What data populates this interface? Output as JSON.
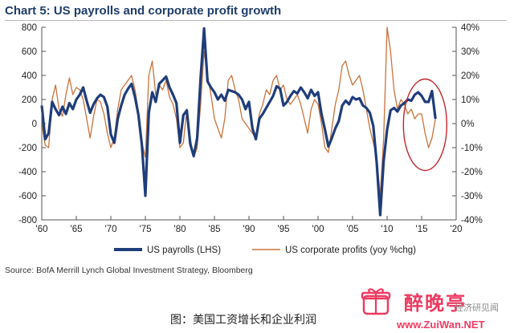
{
  "chart_data": {
    "type": "line",
    "title": "Chart 5: US payrolls and corporate profit growth",
    "x_ticks": [
      "'60",
      "'65",
      "'70",
      "'75",
      "'80",
      "'85",
      "'90",
      "'95",
      "'00",
      "'05",
      "'10",
      "'15",
      "'20"
    ],
    "x_range": [
      1960,
      2020
    ],
    "y_left": {
      "ticks": [
        "800",
        "600",
        "400",
        "200",
        "0",
        "-200",
        "-400",
        "-600",
        "-800"
      ],
      "range": [
        -800,
        800
      ]
    },
    "y_right": {
      "ticks": [
        "40%",
        "30%",
        "20%",
        "10%",
        "0%",
        "-10%",
        "-20%",
        "-30%",
        "-40%"
      ],
      "range": [
        -40,
        40
      ]
    },
    "grid": false,
    "legend_position": "bottom",
    "series": [
      {
        "name": "US payrolls (LHS)",
        "axis": "left",
        "color": "#1f3d7a",
        "x": [
          1960,
          1960.5,
          1961,
          1961.5,
          1962,
          1962.5,
          1963,
          1963.5,
          1964,
          1964.5,
          1965,
          1965.5,
          1966,
          1966.5,
          1967,
          1967.5,
          1968,
          1968.5,
          1969,
          1969.5,
          1970,
          1970.5,
          1971,
          1971.5,
          1972,
          1972.5,
          1973,
          1973.5,
          1974,
          1974.5,
          1975,
          1975.5,
          1976,
          1976.5,
          1977,
          1977.5,
          1978,
          1978.5,
          1979,
          1979.5,
          1980,
          1980.5,
          1981,
          1981.5,
          1982,
          1982.5,
          1983,
          1983.5,
          1984,
          1984.5,
          1985,
          1985.5,
          1986,
          1986.5,
          1987,
          1987.5,
          1988,
          1988.5,
          1989,
          1989.5,
          1990,
          1990.5,
          1991,
          1991.5,
          1992,
          1992.5,
          1993,
          1993.5,
          1994,
          1994.5,
          1995,
          1995.5,
          1996,
          1996.5,
          1997,
          1997.5,
          1998,
          1998.5,
          1999,
          1999.5,
          2000,
          2000.5,
          2001,
          2001.5,
          2002,
          2002.5,
          2003,
          2003.5,
          2004,
          2004.5,
          2005,
          2005.5,
          2006,
          2006.5,
          2007,
          2007.5,
          2008,
          2008.5,
          2009,
          2009.5,
          2010,
          2010.5,
          2011,
          2011.5,
          2012,
          2012.5,
          2013,
          2013.5,
          2014,
          2014.5,
          2015,
          2015.5,
          2016,
          2016.5,
          2017
        ],
        "values": [
          150,
          -130,
          -80,
          180,
          120,
          70,
          140,
          80,
          170,
          120,
          200,
          240,
          300,
          190,
          90,
          160,
          210,
          240,
          220,
          140,
          -90,
          -160,
          40,
          150,
          240,
          290,
          330,
          220,
          70,
          -180,
          -600,
          90,
          260,
          180,
          330,
          360,
          390,
          300,
          240,
          170,
          -160,
          70,
          110,
          -170,
          -270,
          -120,
          380,
          790,
          350,
          300,
          260,
          200,
          240,
          190,
          280,
          270,
          260,
          240,
          200,
          120,
          180,
          -40,
          -130,
          40,
          80,
          130,
          180,
          230,
          310,
          290,
          150,
          180,
          230,
          270,
          250,
          300,
          260,
          210,
          280,
          230,
          260,
          80,
          -50,
          -190,
          -120,
          -40,
          20,
          150,
          190,
          160,
          220,
          200,
          210,
          150,
          130,
          90,
          -20,
          -330,
          -760,
          -310,
          -50,
          110,
          130,
          100,
          150,
          170,
          200,
          190,
          240,
          260,
          230,
          180,
          180,
          270,
          40
        ],
        "yaxis_range": [
          -800,
          800
        ]
      },
      {
        "name": "US corporate profits (yoy %chg)",
        "axis": "right",
        "color": "#c9733c",
        "x": [
          1960,
          1960.5,
          1961,
          1961.5,
          1962,
          1962.5,
          1963,
          1963.5,
          1964,
          1964.5,
          1965,
          1965.5,
          1966,
          1966.5,
          1967,
          1967.5,
          1968,
          1968.5,
          1969,
          1969.5,
          1970,
          1970.5,
          1971,
          1971.5,
          1972,
          1972.5,
          1973,
          1973.5,
          1974,
          1974.5,
          1975,
          1975.5,
          1976,
          1976.5,
          1977,
          1977.5,
          1978,
          1978.5,
          1979,
          1979.5,
          1980,
          1980.5,
          1981,
          1981.5,
          1982,
          1982.5,
          1983,
          1983.5,
          1984,
          1984.5,
          1985,
          1985.5,
          1986,
          1986.5,
          1987,
          1987.5,
          1988,
          1988.5,
          1989,
          1989.5,
          1990,
          1990.5,
          1991,
          1991.5,
          1992,
          1992.5,
          1993,
          1993.5,
          1994,
          1994.5,
          1995,
          1995.5,
          1996,
          1996.5,
          1997,
          1997.5,
          1998,
          1998.5,
          1999,
          1999.5,
          2000,
          2000.5,
          2001,
          2001.5,
          2002,
          2002.5,
          2003,
          2003.5,
          2004,
          2004.5,
          2005,
          2005.5,
          2006,
          2006.5,
          2007,
          2007.5,
          2008,
          2008.5,
          2009,
          2009.5,
          2010,
          2010.5,
          2011,
          2011.5,
          2012,
          2012.5,
          2013,
          2013.5,
          2014,
          2014.5,
          2015,
          2015.5,
          2016,
          2016.5,
          2017
        ],
        "values": [
          0,
          -9,
          -10,
          10,
          16,
          6,
          3,
          12,
          19,
          12,
          15,
          14,
          10,
          2,
          -6,
          3,
          10,
          9,
          4,
          -4,
          -10,
          -6,
          6,
          14,
          16,
          18,
          20,
          14,
          5,
          -8,
          -14,
          20,
          26,
          12,
          16,
          14,
          18,
          11,
          8,
          2,
          -10,
          -8,
          6,
          -6,
          -14,
          -10,
          8,
          30,
          20,
          12,
          2,
          -2,
          -6,
          2,
          18,
          20,
          14,
          10,
          2,
          0,
          -2,
          -4,
          -6,
          4,
          8,
          14,
          12,
          18,
          20,
          14,
          16,
          10,
          8,
          10,
          12,
          8,
          2,
          -4,
          6,
          10,
          8,
          0,
          -10,
          -12,
          -2,
          8,
          14,
          24,
          26,
          20,
          16,
          18,
          20,
          14,
          6,
          -2,
          -8,
          -14,
          -30,
          -6,
          40,
          30,
          14,
          6,
          10,
          8,
          4,
          6,
          2,
          4,
          4,
          -4,
          -10,
          -6,
          2
        ],
        "yaxis_range": [
          -40,
          40
        ]
      }
    ],
    "annotations": [
      {
        "type": "ellipse",
        "label": "",
        "note": "red ring around 2014-2017"
      }
    ]
  },
  "legend": {
    "payrolls": "US payrolls (LHS)",
    "profits": "US corporate profits (yoy %chg)"
  },
  "source": "Source: BofA Merrill Lynch Global Investment Strategy, Bloomberg",
  "caption": "图：美国工资增长和企业利润",
  "watermark": {
    "name": "醉晚亭",
    "url": "www.ZuiWan.NET",
    "side_text": "经济研见闻"
  },
  "colors": {
    "title": "#1f3d6b",
    "payrolls": "#1f3d7a",
    "profits": "#c9733c",
    "highlight_ring": "#c1272d",
    "watermark": "#ef3a61"
  }
}
